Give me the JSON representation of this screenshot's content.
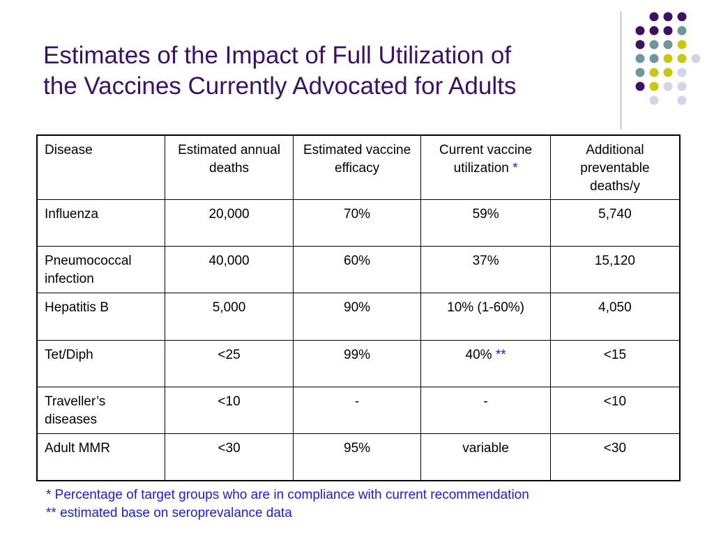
{
  "title": {
    "line1": "Estimates of the Impact of Full Utilization of",
    "line2": "the Vaccines Currently Advocated for Adults"
  },
  "colors": {
    "title": "#3b1263",
    "purple_dot": "#3b1263",
    "teal_dot": "#6f9797",
    "lime_dot": "#c8c814",
    "lavender_dot": "#d4d4e4",
    "footnote": "#1a22c8"
  },
  "table": {
    "headers": [
      "Disease",
      "Estimated annual deaths",
      "Estimated vaccine efficacy",
      "Current vaccine utilization",
      "Additional preventable deaths/y"
    ],
    "header_utilization_marker": "*",
    "rows": [
      {
        "disease": "Influenza",
        "deaths": "20,000",
        "efficacy": "70%",
        "utilization": "59%",
        "marker": "",
        "preventable": "5,740"
      },
      {
        "disease": "Pneumococcal infection",
        "deaths": "40,000",
        "efficacy": "60%",
        "utilization": "37%",
        "marker": "",
        "preventable": "15,120"
      },
      {
        "disease": "Hepatitis B",
        "deaths": "5,000",
        "efficacy": "90%",
        "utilization": "10% (1-60%)",
        "marker": "",
        "preventable": "4,050"
      },
      {
        "disease": "Tet/Diph",
        "deaths": "<25",
        "efficacy": "99%",
        "utilization": "40%",
        "marker": "**",
        "preventable": "<15"
      },
      {
        "disease": "Traveller’s diseases",
        "deaths": "<10",
        "efficacy": "-",
        "utilization": "-",
        "marker": "",
        "preventable": "<10"
      },
      {
        "disease": "Adult MMR",
        "deaths": "<30",
        "efficacy": "95%",
        "utilization": "variable",
        "marker": "",
        "preventable": "<30"
      }
    ]
  },
  "footnotes": [
    "* Percentage of target groups who are in compliance with current recommendation",
    "** estimated base on seroprevalance data"
  ]
}
